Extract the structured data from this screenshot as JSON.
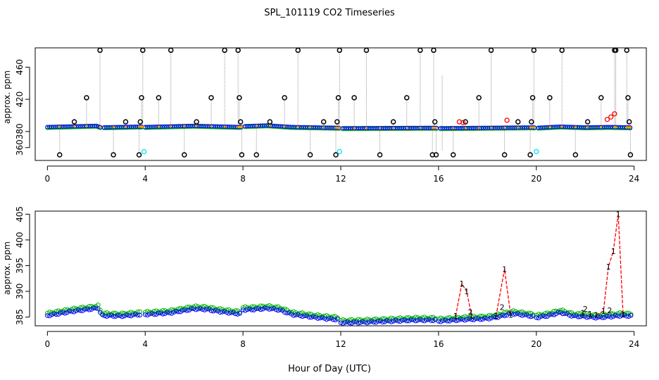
{
  "title": "SPL_101119  CO2 Timeseries",
  "xlabel": "Hour of Day (UTC)",
  "colors": {
    "black": "#000000",
    "blue": "#0000ff",
    "green": "#00b400",
    "red": "#ff0000",
    "cyan": "#00e5ee",
    "orange": "#ff9a00",
    "gray": "#9a9a9a"
  },
  "chart_data": [
    {
      "type": "scatter",
      "panel": "top",
      "ylabel": "approx. ppm",
      "xlim": [
        -0.5,
        24.5
      ],
      "ylim": [
        344,
        484
      ],
      "xticks": [
        0,
        4,
        8,
        12,
        16,
        20,
        24
      ],
      "yticks": [
        360,
        380,
        420,
        460
      ],
      "baseline": [
        [
          0,
          385.5
        ],
        [
          2,
          387
        ],
        [
          2.2,
          385
        ],
        [
          3.8,
          386
        ],
        [
          4,
          385.5
        ],
        [
          6,
          387
        ],
        [
          7.9,
          385.5
        ],
        [
          8,
          386.5
        ],
        [
          9,
          387.5
        ],
        [
          10,
          385.5
        ],
        [
          11.9,
          384.5
        ],
        [
          12,
          384
        ],
        [
          15.9,
          384.5
        ],
        [
          16,
          384
        ],
        [
          18,
          384.5
        ],
        [
          19.9,
          385
        ],
        [
          20,
          384.5
        ],
        [
          21,
          386
        ],
        [
          22,
          385
        ],
        [
          23,
          385.5
        ],
        [
          23.8,
          385
        ]
      ],
      "black_spikes": [
        [
          0.5,
          351
        ],
        [
          1.1,
          392
        ],
        [
          1.6,
          422
        ],
        [
          2.15,
          481
        ],
        [
          2.7,
          351
        ],
        [
          3.2,
          392
        ],
        [
          3.75,
          351
        ],
        [
          3.8,
          392
        ],
        [
          3.85,
          422
        ],
        [
          3.9,
          481
        ],
        [
          4.55,
          422
        ],
        [
          5.05,
          481
        ],
        [
          5.6,
          351
        ],
        [
          6.1,
          392
        ],
        [
          6.7,
          422
        ],
        [
          7.25,
          481
        ],
        [
          7.8,
          481
        ],
        [
          7.85,
          422
        ],
        [
          7.9,
          392
        ],
        [
          7.95,
          351
        ],
        [
          8.55,
          351
        ],
        [
          9.1,
          392
        ],
        [
          9.7,
          422
        ],
        [
          10.25,
          481
        ],
        [
          10.75,
          351
        ],
        [
          11.3,
          392
        ],
        [
          11.8,
          351
        ],
        [
          11.85,
          392
        ],
        [
          11.9,
          422
        ],
        [
          11.95,
          481
        ],
        [
          12.55,
          422
        ],
        [
          13.05,
          481
        ],
        [
          13.6,
          351
        ],
        [
          14.15,
          392
        ],
        [
          14.7,
          422
        ],
        [
          15.25,
          481
        ],
        [
          15.75,
          351
        ],
        [
          15.8,
          481
        ],
        [
          15.85,
          392
        ],
        [
          15.9,
          351
        ],
        [
          16.6,
          351
        ],
        [
          17.1,
          392
        ],
        [
          17.65,
          422
        ],
        [
          18.15,
          481
        ],
        [
          18.7,
          351
        ],
        [
          19.25,
          392
        ],
        [
          19.75,
          351
        ],
        [
          19.8,
          392
        ],
        [
          19.85,
          422
        ],
        [
          19.9,
          481
        ],
        [
          20.55,
          422
        ],
        [
          21.05,
          481
        ],
        [
          21.6,
          351
        ],
        [
          22.1,
          392
        ],
        [
          22.65,
          422
        ],
        [
          23.2,
          481
        ],
        [
          23.25,
          481
        ],
        [
          23.7,
          481
        ],
        [
          23.75,
          422
        ],
        [
          23.8,
          392
        ],
        [
          23.85,
          351
        ]
      ],
      "red_points": [
        [
          16.85,
          392
        ],
        [
          17.0,
          391
        ],
        [
          18.8,
          394
        ],
        [
          22.9,
          395
        ],
        [
          23.05,
          398
        ],
        [
          23.2,
          402
        ]
      ],
      "cyan_points": [
        [
          3.95,
          355
        ],
        [
          11.95,
          355
        ],
        [
          20.0,
          355
        ]
      ],
      "gray_lines": [
        [
          16.1,
          357
        ],
        [
          16.15,
          450
        ]
      ]
    },
    {
      "type": "scatter",
      "panel": "bottom",
      "ylabel": "approx. ppm",
      "xlim": [
        -0.5,
        24.5
      ],
      "ylim": [
        383.3,
        405.6
      ],
      "xticks": [
        0,
        4,
        8,
        12,
        16,
        20,
        24
      ],
      "yticks": [
        385,
        390,
        395,
        400,
        405
      ],
      "segments": [
        {
          "x": [
            0,
            0.5,
            1,
            1.5,
            2,
            2.1,
            2.2,
            3,
            3.8
          ],
          "y": [
            385.4,
            385.8,
            386.2,
            386.5,
            386.8,
            386.9,
            385.4,
            385.3,
            385.6
          ]
        },
        {
          "x": [
            4,
            5,
            6,
            6.5,
            7,
            7.9
          ],
          "y": [
            385.6,
            385.9,
            386.7,
            386.6,
            386.2,
            385.7
          ]
        },
        {
          "x": [
            8,
            8.5,
            9,
            9.5,
            10,
            11,
            11.9
          ],
          "y": [
            386.5,
            386.6,
            386.8,
            386.5,
            385.6,
            385.0,
            384.6
          ]
        },
        {
          "x": [
            12,
            13,
            14,
            15,
            15.9
          ],
          "y": [
            384.0,
            384.1,
            384.3,
            384.5,
            384.5
          ]
        },
        {
          "x": [
            16,
            17,
            18,
            18.5,
            19,
            19.5,
            19.9
          ],
          "y": [
            384.3,
            384.6,
            384.8,
            385.2,
            385.8,
            385.5,
            385.2
          ]
        },
        {
          "x": [
            20,
            20.5,
            21,
            21.5,
            22,
            22.5,
            23,
            23.5,
            23.9
          ],
          "y": [
            385.0,
            385.4,
            386.0,
            385.3,
            385.2,
            385.0,
            385.2,
            385.4,
            385.3
          ]
        }
      ],
      "red_lines": [
        {
          "label": "1",
          "x": [
            16.7,
            16.95,
            17.15,
            17.35
          ],
          "y": [
            385.2,
            391.5,
            390.0,
            385.3
          ]
        },
        {
          "label": "1",
          "x": [
            18.35,
            18.7,
            18.95
          ],
          "y": [
            385.2,
            394.3,
            385.4
          ]
        },
        {
          "label": "1",
          "x": [
            22.45,
            22.75,
            22.95,
            23.15,
            23.35,
            23.55
          ],
          "y": [
            385.4,
            386.2,
            394.8,
            397.8,
            405.0,
            385.5
          ]
        }
      ],
      "green_marks": [
        [
          17.3,
          386.0
        ],
        [
          18.6,
          386.9
        ],
        [
          22.0,
          386.6
        ],
        [
          23.0,
          386.3
        ]
      ],
      "red_marks_small": [
        [
          21.9,
          385.8
        ],
        [
          22.2,
          385.6
        ]
      ]
    }
  ]
}
